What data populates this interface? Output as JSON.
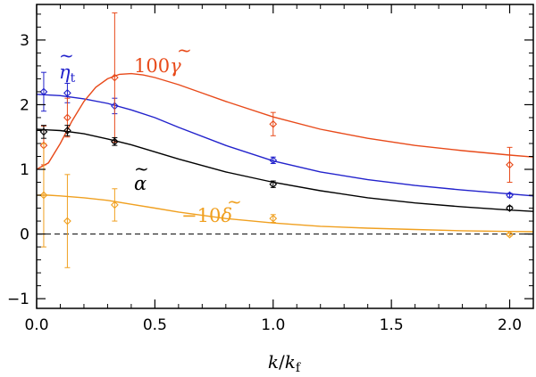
{
  "chart_data": {
    "type": "line",
    "title": "",
    "xlabel": "k/k_f",
    "ylabel": "",
    "xlim": [
      0,
      2.1
    ],
    "ylim": [
      -1.15,
      3.55
    ],
    "xticks": [
      0.0,
      0.5,
      1.0,
      1.5,
      2.0
    ],
    "xtick_labels": [
      "0.0",
      "0.5",
      "1.0",
      "1.5",
      "2.0"
    ],
    "yticks": [
      -1,
      0,
      1,
      2,
      3
    ],
    "ytick_labels": [
      "−1",
      "0",
      "1",
      "2",
      "3"
    ],
    "zero_line": true,
    "xlabel_main": "k",
    "xlabel_slash": "/",
    "xlabel_base": "k",
    "xlabel_sub": "f",
    "series": [
      {
        "name": "eta_t",
        "label_tilde": "~",
        "label_main": "η",
        "label_sub": "t",
        "color": "#2222cc",
        "curve_x": [
          0.0,
          0.05,
          0.1,
          0.2,
          0.3,
          0.4,
          0.5,
          0.6,
          0.8,
          1.0,
          1.2,
          1.4,
          1.6,
          1.8,
          2.0,
          2.1
        ],
        "curve_y": [
          2.16,
          2.15,
          2.14,
          2.09,
          2.02,
          1.92,
          1.8,
          1.65,
          1.37,
          1.13,
          0.96,
          0.84,
          0.75,
          0.68,
          0.62,
          0.59
        ],
        "points": [
          {
            "x": 0.03,
            "y": 2.2,
            "err": 0.3
          },
          {
            "x": 0.13,
            "y": 2.18,
            "err": 0.15
          },
          {
            "x": 0.33,
            "y": 1.98,
            "err": 0.12
          },
          {
            "x": 1.0,
            "y": 1.14,
            "err": 0.05
          },
          {
            "x": 2.0,
            "y": 0.6,
            "err": 0.03
          }
        ]
      },
      {
        "name": "100 gamma",
        "label_main": "100",
        "label_sym": "γ",
        "label_tilde": "~",
        "color": "#e84a1a",
        "curve_x": [
          0.0,
          0.05,
          0.1,
          0.15,
          0.2,
          0.25,
          0.3,
          0.35,
          0.4,
          0.45,
          0.5,
          0.6,
          0.7,
          0.8,
          1.0,
          1.2,
          1.4,
          1.6,
          1.8,
          2.0,
          2.1
        ],
        "curve_y": [
          1.0,
          1.1,
          1.4,
          1.75,
          2.05,
          2.27,
          2.4,
          2.47,
          2.48,
          2.46,
          2.42,
          2.31,
          2.18,
          2.05,
          1.81,
          1.62,
          1.48,
          1.37,
          1.29,
          1.22,
          1.19
        ],
        "points": [
          {
            "x": 0.03,
            "y": 1.37,
            "err": 0.3
          },
          {
            "x": 0.13,
            "y": 1.8,
            "err": 0.3
          },
          {
            "x": 0.33,
            "y": 2.42,
            "err": 1.0
          },
          {
            "x": 1.0,
            "y": 1.7,
            "err": 0.18
          },
          {
            "x": 2.0,
            "y": 1.07,
            "err": 0.27
          }
        ]
      },
      {
        "name": "alpha",
        "label_sym": "α",
        "label_tilde": "~",
        "color": "#000000",
        "curve_x": [
          0.0,
          0.05,
          0.1,
          0.2,
          0.3,
          0.4,
          0.5,
          0.6,
          0.8,
          1.0,
          1.2,
          1.4,
          1.6,
          1.8,
          2.0,
          2.1
        ],
        "curve_y": [
          1.62,
          1.61,
          1.6,
          1.55,
          1.47,
          1.38,
          1.27,
          1.16,
          0.96,
          0.8,
          0.67,
          0.56,
          0.48,
          0.42,
          0.37,
          0.35
        ],
        "points": [
          {
            "x": 0.03,
            "y": 1.58,
            "err": 0.1
          },
          {
            "x": 0.13,
            "y": 1.6,
            "err": 0.08
          },
          {
            "x": 0.33,
            "y": 1.43,
            "err": 0.06
          },
          {
            "x": 1.0,
            "y": 0.77,
            "err": 0.05
          },
          {
            "x": 2.0,
            "y": 0.4,
            "err": 0.03
          }
        ]
      },
      {
        "name": "-10 delta",
        "label_main": "−10",
        "label_sym": "δ",
        "label_tilde": "~",
        "color": "#f0a020",
        "curve_x": [
          0.0,
          0.05,
          0.1,
          0.2,
          0.3,
          0.4,
          0.5,
          0.6,
          0.8,
          1.0,
          1.2,
          1.4,
          1.6,
          1.8,
          2.0,
          2.1
        ],
        "curve_y": [
          0.6,
          0.6,
          0.59,
          0.56,
          0.52,
          0.46,
          0.4,
          0.34,
          0.24,
          0.17,
          0.12,
          0.09,
          0.07,
          0.05,
          0.04,
          0.035
        ],
        "points": [
          {
            "x": 0.03,
            "y": 0.6,
            "err": 0.8
          },
          {
            "x": 0.13,
            "y": 0.2,
            "err": 0.72
          },
          {
            "x": 0.33,
            "y": 0.45,
            "err": 0.25
          },
          {
            "x": 1.0,
            "y": 0.24,
            "err": 0.06
          },
          {
            "x": 2.0,
            "y": -0.01,
            "err": 0.02
          }
        ]
      }
    ]
  }
}
